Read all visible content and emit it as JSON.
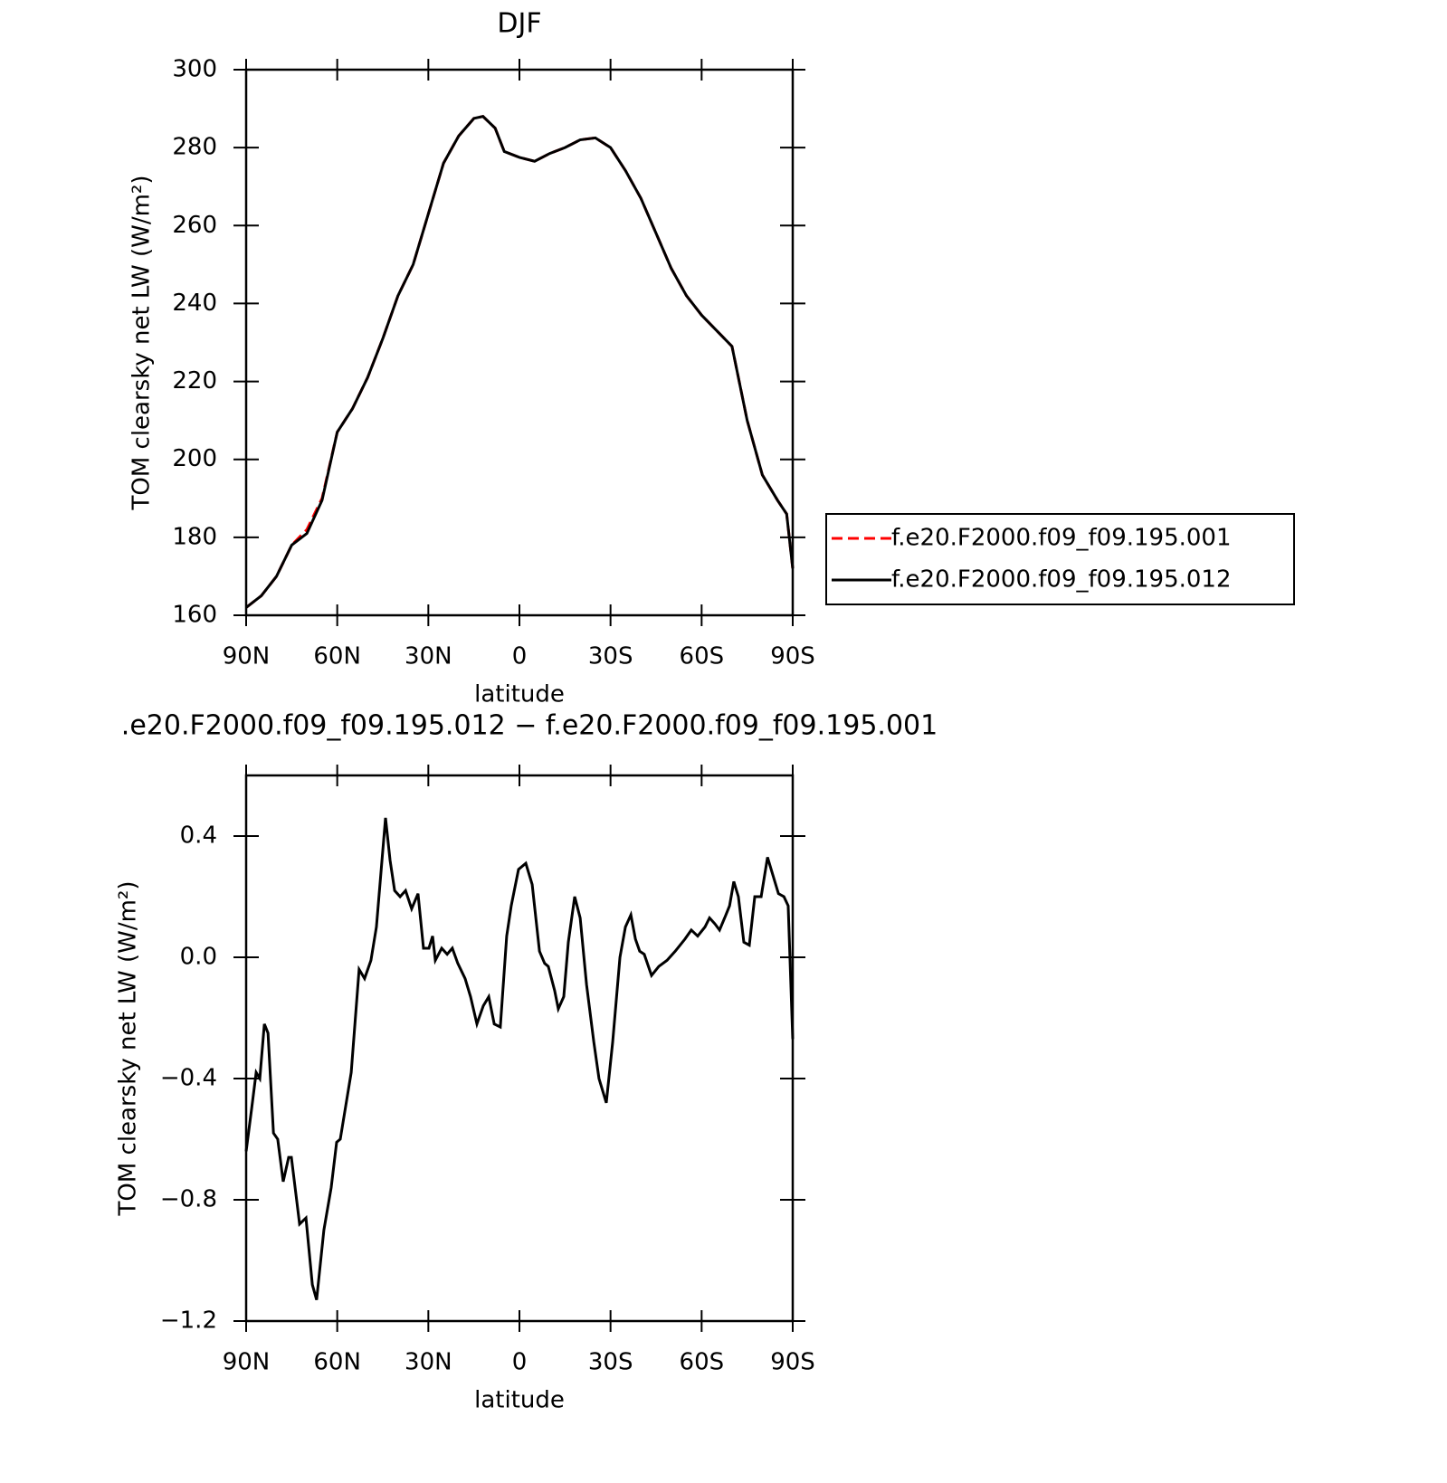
{
  "chart_data": [
    {
      "type": "line",
      "title": "DJF",
      "xlabel": "latitude",
      "ylabel": "TOM clearsky net LW (W/m²)",
      "x": [
        90,
        85,
        80,
        75,
        70,
        65,
        60,
        55,
        50,
        45,
        40,
        35,
        30,
        25,
        20,
        15,
        12,
        8,
        5,
        0,
        -5,
        -10,
        -15,
        -20,
        -25,
        -30,
        -35,
        -40,
        -45,
        -50,
        -55,
        -60,
        -65,
        -70,
        -75,
        -80,
        -85,
        -88,
        -90
      ],
      "series": [
        {
          "name": "f.e20.F2000.f09_f09.195.001",
          "color": "#ff0000",
          "dash": true,
          "values": [
            162,
            165,
            170,
            178,
            182,
            190,
            207,
            213,
            221,
            231,
            242,
            250,
            263,
            276,
            283,
            287.5,
            288,
            285,
            279,
            277.5,
            276.5,
            278.5,
            280,
            282,
            282.5,
            280,
            274,
            267,
            258,
            249,
            242,
            237,
            233,
            229,
            210,
            196,
            189.5,
            186,
            172
          ]
        },
        {
          "name": "f.e20.F2000.f09_f09.195.012",
          "color": "#000000",
          "dash": false,
          "values": [
            162,
            165,
            170,
            178,
            181,
            189.5,
            207,
            213,
            221,
            231,
            242,
            250,
            263,
            276,
            283,
            287.5,
            288,
            285,
            279,
            277.5,
            276.5,
            278.5,
            280,
            282,
            282.5,
            280,
            274,
            267,
            258,
            249,
            242,
            237,
            233,
            229,
            210,
            196,
            189.5,
            186,
            172
          ]
        }
      ],
      "xlim": [
        90,
        -90
      ],
      "xticks": [
        {
          "value": 90,
          "label": "90N"
        },
        {
          "value": 60,
          "label": "60N"
        },
        {
          "value": 30,
          "label": "30N"
        },
        0,
        {
          "value": -30,
          "label": "30S"
        },
        {
          "value": -60,
          "label": "60S"
        },
        {
          "value": -90,
          "label": "90S"
        }
      ],
      "ylim": [
        160,
        300
      ],
      "yticks": [
        160,
        180,
        200,
        220,
        240,
        260,
        280,
        300
      ],
      "legend": "right"
    },
    {
      "type": "line",
      "title": ".e20.F2000.f09_f09.195.012 − f.e20.F2000.f09_f09.195.001",
      "xlabel": "latitude",
      "ylabel": "TOM clearsky net LW (W/m²)",
      "x": [
        90,
        88.2,
        86.7,
        85.5,
        84,
        82.8,
        81,
        79.6,
        77.8,
        76,
        75.1,
        72.4,
        70.3,
        68.2,
        66.8,
        64.4,
        62,
        60.2,
        59,
        55.4,
        52.8,
        51,
        48.9,
        47.1,
        44.1,
        42.6,
        41.1,
        39.3,
        37.5,
        35.5,
        33.4,
        31.6,
        29.8,
        28.6,
        27.7,
        25.6,
        23.8,
        22.1,
        20.3,
        17.9,
        16.1,
        14,
        11.9,
        10.1,
        8.3,
        6.3,
        4.2,
        2.7,
        0.3,
        -2.1,
        -4.2,
        -6.6,
        -8.3,
        -9.5,
        -11.6,
        -12.8,
        -14.6,
        -16.1,
        -18.2,
        -20,
        -22.1,
        -24.5,
        -26.2,
        -28.6,
        -30.7,
        -33.1,
        -34.9,
        -36.7,
        -38.2,
        -39.6,
        -41.1,
        -43.5,
        -45.9,
        -48.6,
        -51.3,
        -54.5,
        -56.6,
        -58.7,
        -61.1,
        -62.6,
        -64.4,
        -65.9,
        -68,
        -69.2,
        -70.6,
        -72.1,
        -73.9,
        -75.7,
        -77.5,
        -79.6,
        -81.7,
        -83.2,
        -85.3,
        -87.1,
        -88.5,
        -90
      ],
      "values": [
        -0.64,
        -0.5,
        -0.38,
        -0.4,
        -0.22,
        -0.25,
        -0.58,
        -0.6,
        -0.74,
        -0.66,
        -0.66,
        -0.88,
        -0.86,
        -1.08,
        -1.13,
        -0.9,
        -0.76,
        -0.61,
        -0.6,
        -0.38,
        -0.04,
        -0.07,
        -0.01,
        0.1,
        0.46,
        0.32,
        0.22,
        0.2,
        0.22,
        0.16,
        0.21,
        0.03,
        0.03,
        0.07,
        -0.01,
        0.03,
        0.01,
        0.03,
        -0.02,
        -0.07,
        -0.13,
        -0.22,
        -0.16,
        -0.13,
        -0.22,
        -0.23,
        0.07,
        0.17,
        0.29,
        0.31,
        0.24,
        0.02,
        -0.02,
        -0.03,
        -0.11,
        -0.17,
        -0.13,
        0.05,
        0.2,
        0.13,
        -0.09,
        -0.28,
        -0.4,
        -0.48,
        -0.28,
        0.0,
        0.1,
        0.14,
        0.06,
        0.02,
        0.01,
        -0.06,
        -0.03,
        -0.01,
        0.02,
        0.06,
        0.09,
        0.07,
        0.1,
        0.13,
        0.11,
        0.09,
        0.14,
        0.17,
        0.25,
        0.2,
        0.05,
        0.04,
        0.2,
        0.2,
        0.33,
        0.28,
        0.21,
        0.2,
        0.17,
        -0.27
      ],
      "color": "#000000",
      "xlim": [
        90,
        -90
      ],
      "xticks": [
        {
          "value": 90,
          "label": "90N"
        },
        {
          "value": 60,
          "label": "60N"
        },
        {
          "value": 30,
          "label": "30N"
        },
        0,
        {
          "value": -30,
          "label": "30S"
        },
        {
          "value": -60,
          "label": "60S"
        },
        {
          "value": -90,
          "label": "90S"
        }
      ],
      "ylim": [
        -1.2,
        0.6
      ],
      "yticks": [
        {
          "value": -1.2,
          "label": "−1.2"
        },
        {
          "value": -0.8,
          "label": "−0.8"
        },
        {
          "value": -0.4,
          "label": "−0.4"
        },
        {
          "value": 0,
          "label": "0.0"
        },
        0.4
      ]
    }
  ]
}
